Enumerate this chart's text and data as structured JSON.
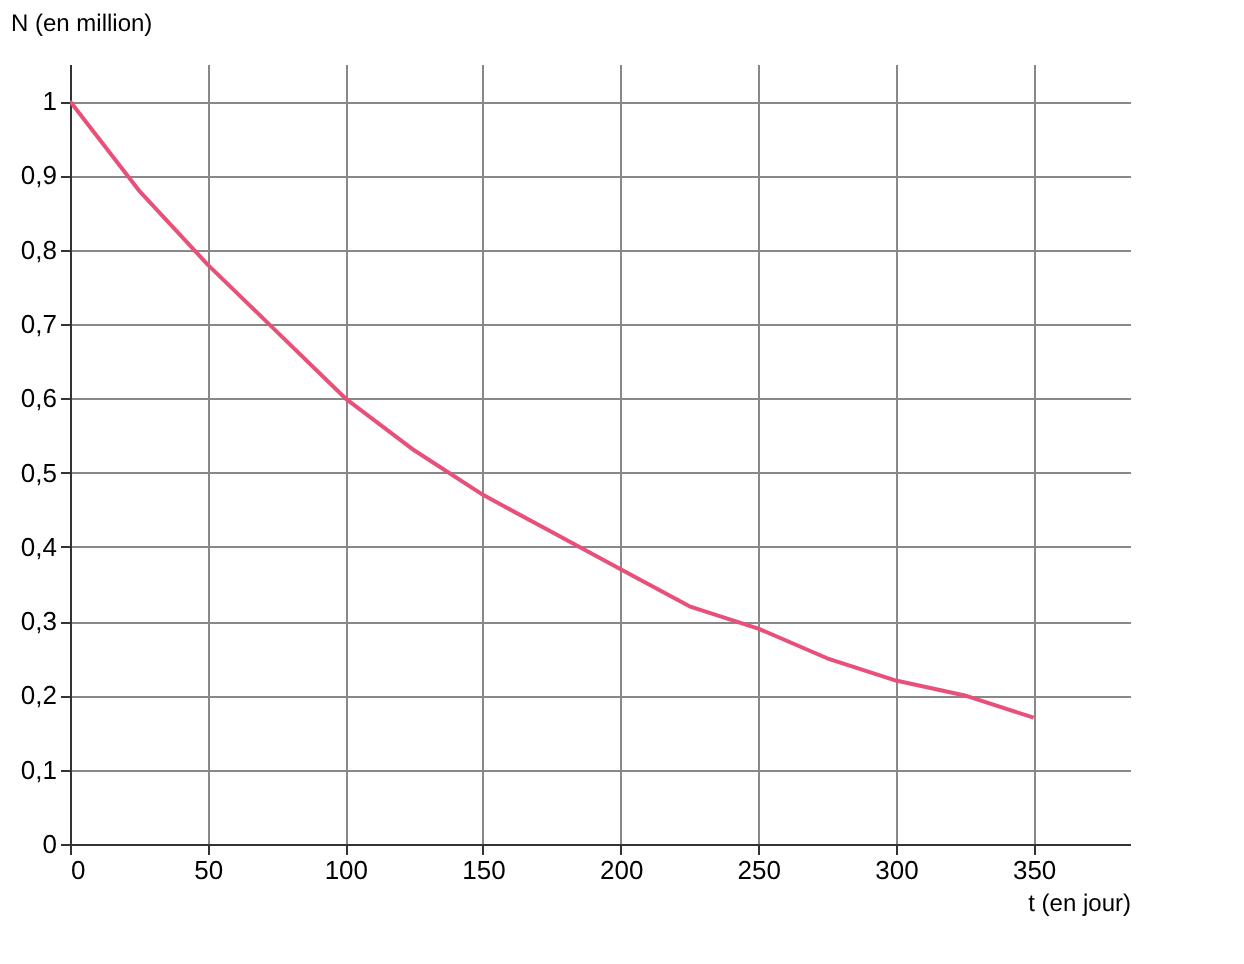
{
  "chart_data": {
    "type": "line",
    "xlabel": "t (en jour)",
    "ylabel": "N (en million)",
    "x": [
      0,
      25,
      50,
      75,
      100,
      125,
      150,
      175,
      200,
      225,
      250,
      275,
      300,
      325,
      350
    ],
    "series": [
      {
        "color": "#e8507a",
        "values": [
          1.0,
          0.88,
          0.78,
          0.69,
          0.6,
          0.53,
          0.47,
          0.42,
          0.37,
          0.32,
          0.29,
          0.25,
          0.22,
          0.2,
          0.17
        ]
      }
    ],
    "xlim": [
      0,
      385
    ],
    "ylim": [
      0,
      1.05
    ],
    "xticks": [
      0,
      50,
      100,
      150,
      200,
      250,
      300,
      350
    ],
    "yticks": [
      0,
      {
        "value": 0.1,
        "label": "0,1"
      },
      {
        "value": 0.2,
        "label": "0,2"
      },
      {
        "value": 0.3,
        "label": "0,3"
      },
      {
        "value": 0.4,
        "label": "0,4"
      },
      {
        "value": 0.5,
        "label": "0,5"
      },
      {
        "value": 0.6,
        "label": "0,6"
      },
      {
        "value": 0.7,
        "label": "0,7"
      },
      {
        "value": 0.8,
        "label": "0,8"
      },
      {
        "value": 0.9,
        "label": "0,9"
      },
      1
    ],
    "grid": true,
    "marker": "none",
    "line_style": "solid",
    "legend": false
  }
}
